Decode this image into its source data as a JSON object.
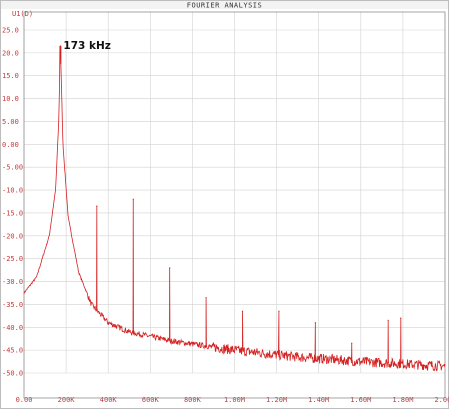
{
  "chart_data": {
    "type": "line",
    "title": "FOURIER ANALYSIS",
    "trace_label": "U1(D)",
    "xlabel": "",
    "ylabel": "",
    "xlim": [
      0,
      2000000
    ],
    "ylim": [
      -50,
      25
    ],
    "x_ticks": [
      {
        "value": 0,
        "label": "0.00"
      },
      {
        "value": 200000,
        "label": "200K"
      },
      {
        "value": 400000,
        "label": "400K"
      },
      {
        "value": 600000,
        "label": "600K"
      },
      {
        "value": 800000,
        "label": "800K"
      },
      {
        "value": 1000000,
        "label": "1.00M"
      },
      {
        "value": 1200000,
        "label": "1.20M"
      },
      {
        "value": 1400000,
        "label": "1.40M"
      },
      {
        "value": 1600000,
        "label": "1.60M"
      },
      {
        "value": 1800000,
        "label": "1.80M"
      },
      {
        "value": 2000000,
        "label": "2.00M"
      }
    ],
    "y_ticks": [
      {
        "value": 25,
        "label": "25.0"
      },
      {
        "value": 20,
        "label": "20.0"
      },
      {
        "value": 15,
        "label": "15.0"
      },
      {
        "value": 10,
        "label": "10.0"
      },
      {
        "value": 5,
        "label": "5.00"
      },
      {
        "value": 0,
        "label": "0.00"
      },
      {
        "value": -5,
        "label": "-5.00"
      },
      {
        "value": -10,
        "label": "-10.0"
      },
      {
        "value": -15,
        "label": "-15.0"
      },
      {
        "value": -20,
        "label": "-20.0"
      },
      {
        "value": -25,
        "label": "-25.0"
      },
      {
        "value": -30,
        "label": "-30.0"
      },
      {
        "value": -35,
        "label": "-35.0"
      },
      {
        "value": -40,
        "label": "-40.0"
      },
      {
        "value": -45,
        "label": "-45.0"
      },
      {
        "value": -50,
        "label": "-50.0"
      }
    ],
    "grid": true,
    "series_color": "#d42020",
    "fundamental": {
      "x": 173000,
      "y": 21.5
    },
    "peaks": [
      {
        "x": 173000,
        "y": 21.5
      },
      {
        "x": 346000,
        "y": -13.5
      },
      {
        "x": 519000,
        "y": -12.0
      },
      {
        "x": 692000,
        "y": -27.0
      },
      {
        "x": 865000,
        "y": -33.5
      },
      {
        "x": 1038000,
        "y": -36.5
      },
      {
        "x": 1211000,
        "y": -36.5
      },
      {
        "x": 1384000,
        "y": -39.0
      },
      {
        "x": 1557000,
        "y": -43.5
      },
      {
        "x": 1730000,
        "y": -38.5
      },
      {
        "x": 1790000,
        "y": -38.0
      }
    ],
    "floor": [
      {
        "x": 0,
        "y": -32.5
      },
      {
        "x": 60000,
        "y": -29.0
      },
      {
        "x": 120000,
        "y": -20.0
      },
      {
        "x": 150000,
        "y": -10.0
      },
      {
        "x": 165000,
        "y": 5.0
      },
      {
        "x": 173000,
        "y": 21.5
      },
      {
        "x": 185000,
        "y": 0.0
      },
      {
        "x": 210000,
        "y": -16.0
      },
      {
        "x": 260000,
        "y": -28.0
      },
      {
        "x": 320000,
        "y": -35.0
      },
      {
        "x": 400000,
        "y": -39.0
      },
      {
        "x": 500000,
        "y": -41.0
      },
      {
        "x": 700000,
        "y": -43.0
      },
      {
        "x": 1000000,
        "y": -45.0
      },
      {
        "x": 1300000,
        "y": -46.5
      },
      {
        "x": 1600000,
        "y": -47.5
      },
      {
        "x": 2000000,
        "y": -48.5
      }
    ],
    "annotations": [
      {
        "text": "173 kHz",
        "x": 173000,
        "y": 21.5
      }
    ]
  }
}
